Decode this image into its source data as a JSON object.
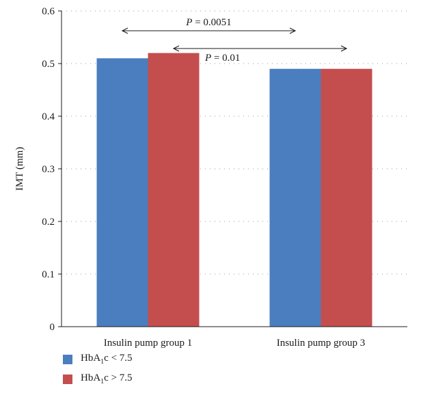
{
  "chart_data": {
    "type": "bar",
    "categories": [
      "Insulin pump group 1",
      "Insulin pump group 3"
    ],
    "series": [
      {
        "name": "HbA1c < 7.5",
        "label_prefix": "HbA",
        "label_sub": "1",
        "label_suffix": "c < 7.5",
        "color": "#4a7ebf",
        "values": [
          0.51,
          0.49
        ]
      },
      {
        "name": "HbA1c > 7.5",
        "label_prefix": "HbA",
        "label_sub": "1",
        "label_suffix": "c > 7.5",
        "color": "#c44e4e",
        "values": [
          0.52,
          0.49
        ]
      }
    ],
    "ylabel": "IMT (mm)",
    "xlabel": "",
    "ylim": [
      0,
      0.6
    ],
    "yticks": [
      "0",
      "0.1",
      "0.2",
      "0.3",
      "0.4",
      "0.5",
      "0.6"
    ],
    "grid": "dotted horizontal",
    "legend_position": "bottom-left",
    "annotations": [
      {
        "p_label": "P",
        "text": " = 0.0051",
        "from": "Insulin pump group 1: HbA1c < 7.5",
        "to": "Insulin pump group 3: HbA1c < 7.5"
      },
      {
        "p_label": "P",
        "text": " = 0.01",
        "from": "Insulin pump group 1: HbA1c > 7.5",
        "to": "Insulin pump group 3: HbA1c > 7.5"
      }
    ]
  }
}
